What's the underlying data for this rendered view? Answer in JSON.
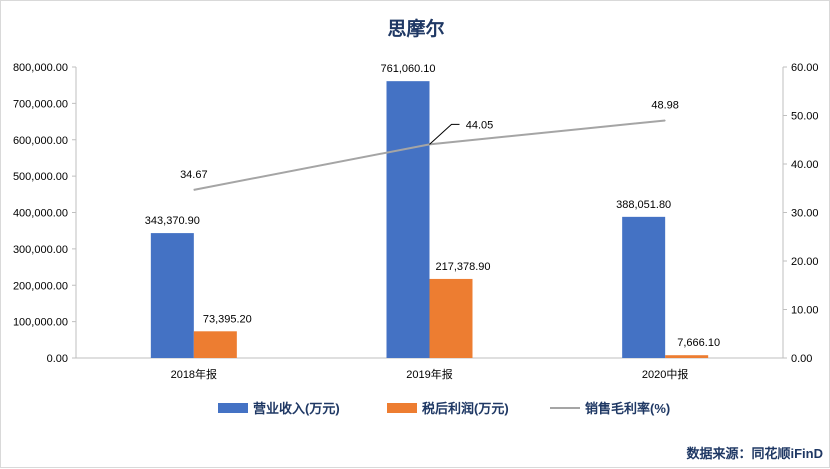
{
  "chart_data": {
    "type": "bar",
    "title": "思摩尔",
    "categories": [
      "2018年报",
      "2019年报",
      "2020中报"
    ],
    "series": [
      {
        "name": "营业收入(万元)",
        "type": "bar",
        "axis": "left",
        "color": "#4472c4",
        "values": [
          343370.9,
          761060.1,
          388051.8
        ],
        "labels": [
          "343,370.90",
          "761,060.10",
          "388,051.80"
        ]
      },
      {
        "name": "税后利润(万元)",
        "type": "bar",
        "axis": "left",
        "color": "#ed7d31",
        "values": [
          73395.2,
          217378.9,
          7666.1
        ],
        "labels": [
          "73,395.20",
          "217,378.90",
          "7,666.10"
        ]
      },
      {
        "name": "销售毛利率(%)",
        "type": "line",
        "axis": "right",
        "color": "#a5a5a5",
        "values": [
          34.67,
          44.05,
          48.98
        ],
        "labels": [
          "34.67",
          "44.05",
          "48.98"
        ]
      }
    ],
    "left_axis": {
      "ylim": [
        0,
        800000
      ],
      "ticks": [
        "0.00",
        "100,000.00",
        "200,000.00",
        "300,000.00",
        "400,000.00",
        "500,000.00",
        "600,000.00",
        "700,000.00",
        "800,000.00"
      ]
    },
    "right_axis": {
      "ylim": [
        0,
        60
      ],
      "ticks": [
        "0.00",
        "10.00",
        "20.00",
        "30.00",
        "40.00",
        "50.00",
        "60.00"
      ]
    },
    "grid": false,
    "legend_position": "bottom"
  },
  "source_text": "数据来源：同花顺iFinD"
}
